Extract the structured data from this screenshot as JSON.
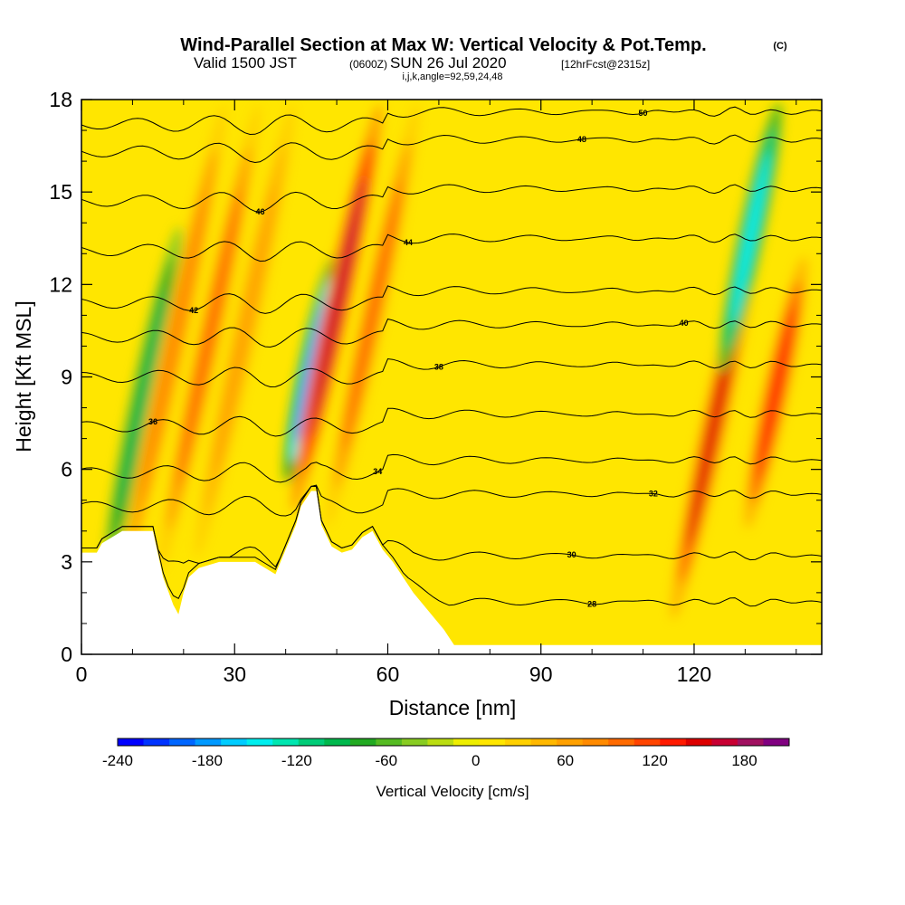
{
  "title": {
    "main": "Wind-Parallel Section at Max W: Vertical Velocity & Pot.Temp.",
    "copyright": "(C)",
    "valid_prefix": "Valid 1500 JST",
    "valid_utc": "(0600Z)",
    "valid_date": "SUN 26 Jul 2020",
    "forecast": "[12hrFcst@2315z]",
    "indices": "i,j,k,angle=92,59,24,48"
  },
  "colors": {
    "terrain": "#ffffff",
    "contour_line": "#000000",
    "palette": [
      "#0000ff",
      "#0033ff",
      "#0066ff",
      "#0099ff",
      "#00ccff",
      "#00eeee",
      "#00e6b0",
      "#00cc77",
      "#00b84d",
      "#22aa22",
      "#55bb22",
      "#88cc22",
      "#bbdd11",
      "#eeee00",
      "#ffe600",
      "#ffd000",
      "#ffb800",
      "#ffa000",
      "#ff8a00",
      "#ff6a00",
      "#ff4400",
      "#ff1a00",
      "#dd0000",
      "#c80032",
      "#a01060",
      "#800080"
    ]
  },
  "chart_data": {
    "type": "heatmap",
    "xlabel": "Distance [nm]",
    "ylabel": "Height [Kft MSL]",
    "xlim": [
      0,
      145
    ],
    "ylim": [
      0,
      18
    ],
    "xticks": [
      "0",
      "30",
      "60",
      "90",
      "120"
    ],
    "yticks": [
      "0",
      "3",
      "6",
      "9",
      "12",
      "15",
      "18"
    ],
    "colorbar": {
      "label": "Vertical Velocity [cm/s]",
      "range": [
        -240,
        210
      ],
      "ticks": [
        "-240",
        "-180",
        "-120",
        "-60",
        "0",
        "60",
        "120",
        "180"
      ]
    },
    "velocity_features": [
      {
        "x": 12,
        "z_range": [
          2.5,
          14
        ],
        "w": -100,
        "sign": "downdraft"
      },
      {
        "x": 18,
        "z_range": [
          2,
          18
        ],
        "w": 80,
        "sign": "updraft"
      },
      {
        "x": 25,
        "z_range": [
          2.5,
          18
        ],
        "w": 90,
        "sign": "updraft"
      },
      {
        "x": 32,
        "z_range": [
          3,
          18
        ],
        "w": 70,
        "sign": "updraft"
      },
      {
        "x": 45,
        "z_range": [
          5.5,
          13
        ],
        "w": -200,
        "sign": "downdraft"
      },
      {
        "x": 50,
        "z_range": [
          4.5,
          18
        ],
        "w": 170,
        "sign": "updraft"
      },
      {
        "x": 57,
        "z_range": [
          4,
          18
        ],
        "w": 90,
        "sign": "updraft"
      },
      {
        "x": 124,
        "z_range": [
          1,
          14
        ],
        "w": 150,
        "sign": "updraft"
      },
      {
        "x": 131,
        "z_range": [
          9,
          18
        ],
        "w": -150,
        "sign": "downdraft"
      },
      {
        "x": 136,
        "z_range": [
          4,
          13
        ],
        "w": 130,
        "sign": "updraft"
      }
    ],
    "terrain_profile": {
      "x": [
        0,
        3,
        4,
        8,
        14,
        16,
        18,
        19,
        20,
        21,
        23,
        25,
        27,
        34,
        38,
        40,
        42,
        43,
        45,
        46,
        47,
        49,
        51,
        53,
        55,
        57,
        59,
        61,
        63,
        65,
        67,
        69,
        71,
        73,
        145
      ],
      "z": [
        3.3,
        3.3,
        3.6,
        4.0,
        4.0,
        2.5,
        1.6,
        1.3,
        2.0,
        2.5,
        2.8,
        2.9,
        3.0,
        3.0,
        2.6,
        3.4,
        4.2,
        4.8,
        5.3,
        5.3,
        4.2,
        3.5,
        3.3,
        3.4,
        3.8,
        4.0,
        3.4,
        3.0,
        2.5,
        2.0,
        1.6,
        1.2,
        0.8,
        0.3,
        0.3
      ]
    },
    "theta_contours": [
      {
        "label": "28",
        "z_mid": 1.7
      },
      {
        "label": "30",
        "z_mid": 3.2
      },
      {
        "label": "32",
        "z_mid": 5.2
      },
      {
        "label": "34",
        "z_mid": 6.3
      },
      {
        "label": "36",
        "z_mid": 7.8
      },
      {
        "label": "38",
        "z_mid": 9.4
      },
      {
        "label": "40",
        "z_mid": 10.7
      },
      {
        "label": "42",
        "z_mid": 11.8
      },
      {
        "label": "44",
        "z_mid": 13.5
      },
      {
        "label": "46",
        "z_mid": 15.1
      },
      {
        "label": "48",
        "z_mid": 16.7
      },
      {
        "label": "50",
        "z_mid": 17.6
      }
    ]
  }
}
